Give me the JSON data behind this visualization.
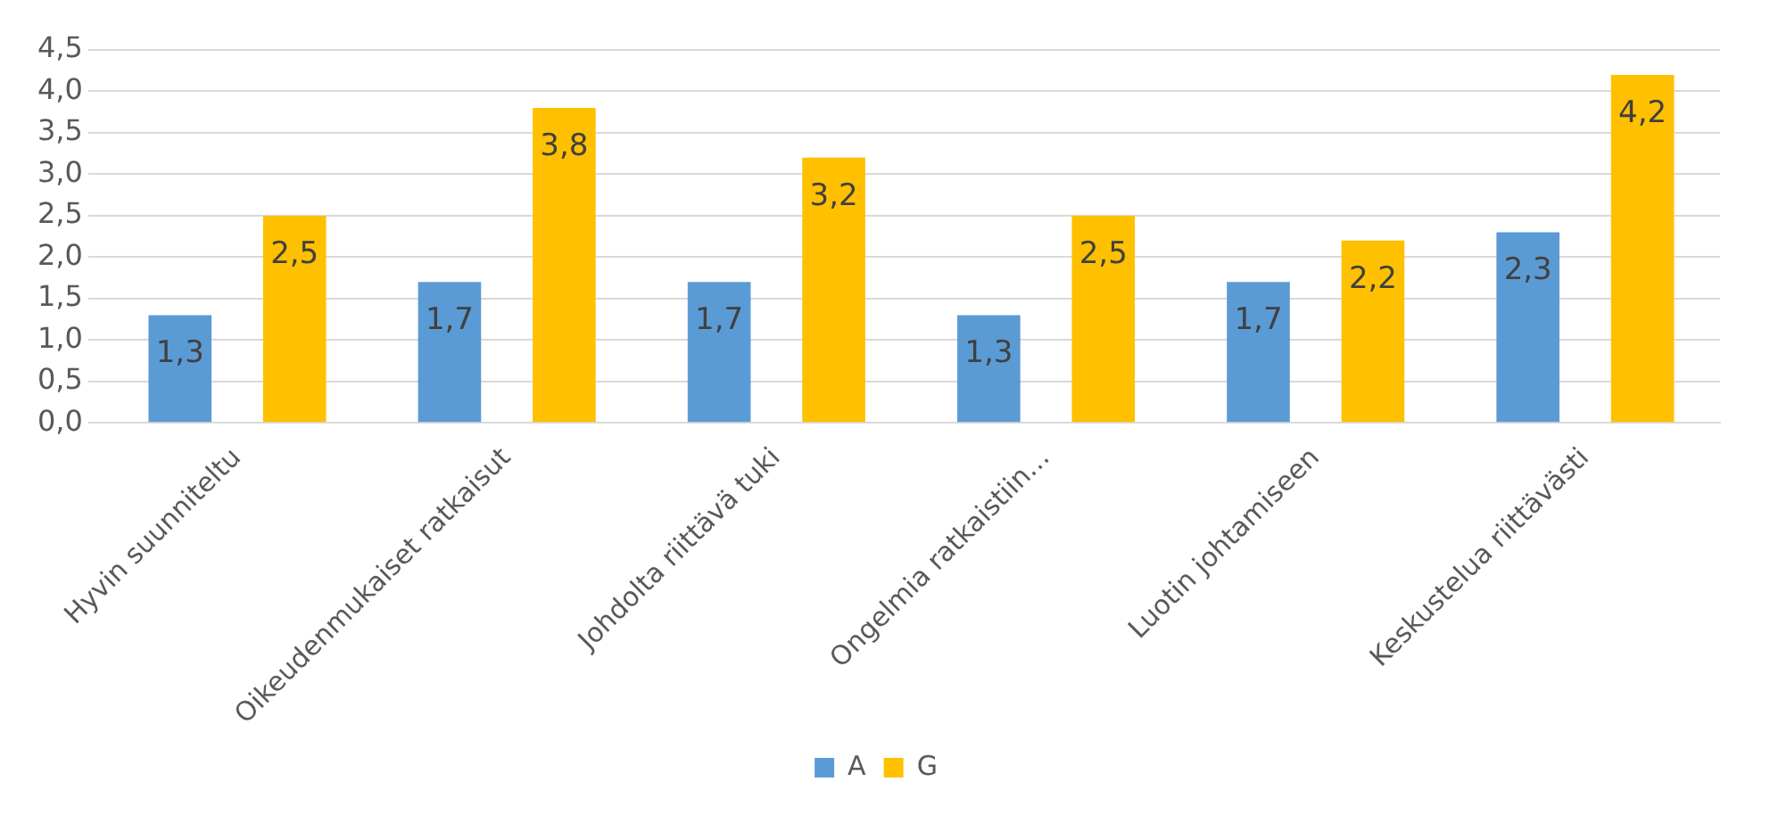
{
  "chart_data": {
    "type": "bar",
    "categories": [
      "Hyvin suunniteltu",
      "Oikeudenmukaiset ratkaisut",
      "Johdolta riittävä tuki",
      "Ongelmia ratkaistiin…",
      "Luotin johtamiseen",
      "Keskustelua riittävästi"
    ],
    "series": [
      {
        "name": "A",
        "color": "#5b9bd5",
        "values": [
          1.3,
          1.7,
          1.7,
          1.3,
          1.7,
          2.3
        ],
        "value_labels": [
          "1,3",
          "1,7",
          "1,7",
          "1,3",
          "1,7",
          "2,3"
        ]
      },
      {
        "name": "G",
        "color": "#ffc000",
        "values": [
          2.5,
          3.8,
          3.2,
          2.5,
          2.2,
          4.2
        ],
        "value_labels": [
          "2,5",
          "3,8",
          "3,2",
          "2,5",
          "2,2",
          "4,2"
        ]
      }
    ],
    "ylim": [
      0,
      4.5
    ],
    "yticks": [
      {
        "value": 0,
        "label": "0,0"
      },
      {
        "value": 0.5,
        "label": "0,5"
      },
      {
        "value": 1,
        "label": "1,0"
      },
      {
        "value": 1.5,
        "label": "1,5"
      },
      {
        "value": 2,
        "label": "2,0"
      },
      {
        "value": 2.5,
        "label": "2,5"
      },
      {
        "value": 3,
        "label": "3,0"
      },
      {
        "value": 3.5,
        "label": "3,5"
      },
      {
        "value": 4,
        "label": "4,0"
      },
      {
        "value": 4.5,
        "label": "4,5"
      }
    ],
    "grid": "y",
    "legend": "bottom"
  }
}
